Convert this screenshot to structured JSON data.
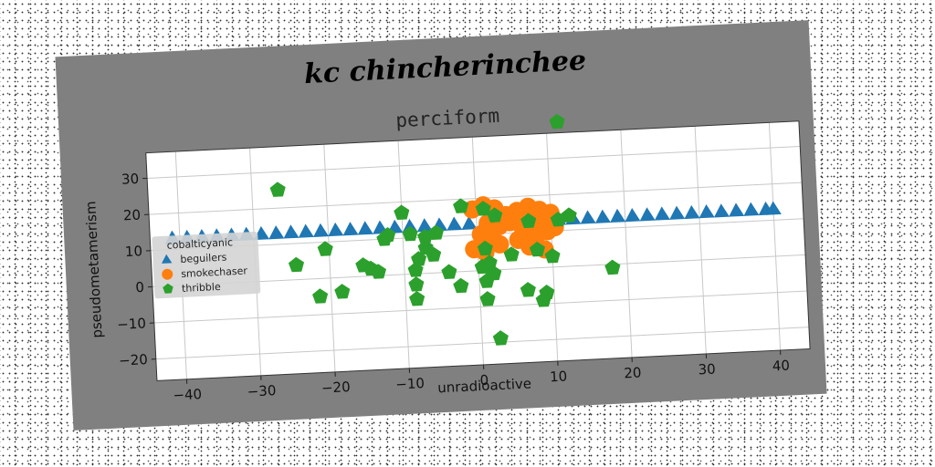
{
  "figure": {
    "suptitle": "kc chincherinchee",
    "background": "#808080"
  },
  "chart_data": {
    "type": "scatter",
    "title": "perciform",
    "xlabel": "unradioactive",
    "ylabel": "pseudometamerism",
    "xlim": [
      -44,
      44
    ],
    "ylim": [
      -26,
      37
    ],
    "xticks": [
      -40,
      -30,
      -20,
      -10,
      0,
      10,
      20,
      30,
      40
    ],
    "yticks": [
      -20,
      -10,
      0,
      10,
      20,
      30
    ],
    "grid": true,
    "legend": {
      "title": "cobalticyanic",
      "placement": "center-left"
    },
    "series": [
      {
        "name": "beguilers",
        "marker": "triangle",
        "color": "#1f77b4",
        "points": [
          [
            -41,
            13
          ],
          [
            -39,
            13
          ],
          [
            -37,
            13
          ],
          [
            -35,
            13
          ],
          [
            -33,
            13
          ],
          [
            -31,
            13
          ],
          [
            -29,
            13
          ],
          [
            -27,
            13
          ],
          [
            -25,
            13
          ],
          [
            -23,
            13
          ],
          [
            -21,
            13
          ],
          [
            -19,
            13
          ],
          [
            -17,
            13
          ],
          [
            -15,
            13
          ],
          [
            -13,
            13
          ],
          [
            -11,
            13
          ],
          [
            -9,
            13
          ],
          [
            -7,
            13
          ],
          [
            -5,
            13
          ],
          [
            -3,
            13
          ],
          [
            -1,
            13
          ],
          [
            1,
            13
          ],
          [
            3,
            13
          ],
          [
            5,
            13
          ],
          [
            7,
            13
          ],
          [
            9,
            13
          ],
          [
            11,
            13
          ],
          [
            13,
            13
          ],
          [
            15,
            13
          ],
          [
            17,
            13
          ],
          [
            19,
            13
          ],
          [
            21,
            13
          ],
          [
            23,
            13
          ],
          [
            25,
            13
          ],
          [
            27,
            13
          ],
          [
            29,
            13
          ],
          [
            31,
            13
          ],
          [
            33,
            13
          ],
          [
            35,
            13
          ],
          [
            37,
            13
          ],
          [
            39,
            13
          ],
          [
            40,
            13
          ]
        ]
      },
      {
        "name": "smokechaser",
        "marker": "circle",
        "color": "#ff7f0e",
        "points": [
          [
            -0.5,
            17
          ],
          [
            1,
            18
          ],
          [
            2.5,
            17
          ],
          [
            4,
            15
          ],
          [
            5.5,
            16
          ],
          [
            7,
            17
          ],
          [
            8.5,
            16
          ],
          [
            10,
            15
          ],
          [
            1.5,
            13
          ],
          [
            3,
            12
          ],
          [
            4.5,
            13
          ],
          [
            6,
            12
          ],
          [
            7.5,
            13
          ],
          [
            9,
            12
          ],
          [
            10.5,
            11
          ],
          [
            0.5,
            10
          ],
          [
            2,
            9
          ],
          [
            6.5,
            10
          ],
          [
            8,
            9
          ],
          [
            9.5,
            10
          ],
          [
            -0.5,
            6
          ],
          [
            1,
            5
          ],
          [
            3,
            7
          ],
          [
            5.5,
            8
          ],
          [
            7,
            6
          ],
          [
            9,
            5
          ]
        ]
      },
      {
        "name": "thribble",
        "marker": "pentagon",
        "color": "#2ca02c",
        "points": [
          [
            11.5,
            40
          ],
          [
            -26.5,
            25
          ],
          [
            -10,
            17
          ],
          [
            -2,
            18
          ],
          [
            1,
            17
          ],
          [
            2.5,
            15
          ],
          [
            7,
            13
          ],
          [
            11,
            13
          ],
          [
            12.5,
            14
          ],
          [
            -12,
            11
          ],
          [
            -9,
            11
          ],
          [
            -7,
            10
          ],
          [
            -5.5,
            11
          ],
          [
            -12.5,
            10
          ],
          [
            -20.5,
            8
          ],
          [
            -7,
            7
          ],
          [
            -6,
            5
          ],
          [
            -8,
            4
          ],
          [
            -24.5,
            4
          ],
          [
            -15.5,
            3
          ],
          [
            -14.5,
            2
          ],
          [
            -13.5,
            1
          ],
          [
            -8.5,
            1
          ],
          [
            -4,
            0
          ],
          [
            1,
            6
          ],
          [
            4.5,
            4
          ],
          [
            8,
            5
          ],
          [
            10,
            3
          ],
          [
            0.5,
            1
          ],
          [
            1.5,
            2
          ],
          [
            2,
            -1
          ],
          [
            -8.5,
            -3
          ],
          [
            -2.5,
            -4
          ],
          [
            -21.5,
            -5
          ],
          [
            -18.5,
            -4
          ],
          [
            -8.5,
            -7
          ],
          [
            1,
            -3
          ],
          [
            6.5,
            -6
          ],
          [
            9,
            -7
          ],
          [
            8.5,
            -9
          ],
          [
            1,
            -8
          ],
          [
            18,
            -1
          ],
          [
            2.5,
            -19
          ]
        ]
      }
    ]
  }
}
